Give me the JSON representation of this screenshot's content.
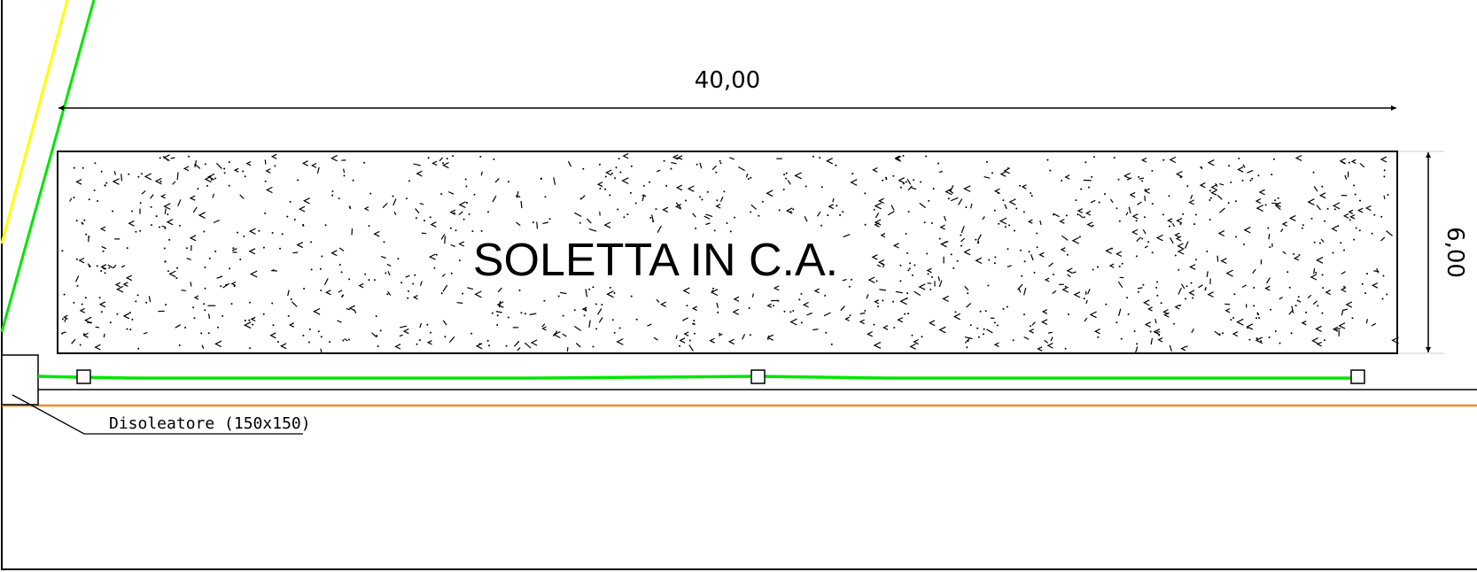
{
  "dimensions": {
    "length_label": "40,00",
    "width_label": "6,00"
  },
  "slab": {
    "label": "SOLETTA IN C.A."
  },
  "callout": {
    "label": "Disoleatore (150x150)"
  },
  "colors": {
    "line": "#000000",
    "pipe_green": "#00e600",
    "line_yellow": "#ffff00",
    "line_orange": "#f08c28",
    "background": "#ffffff"
  }
}
